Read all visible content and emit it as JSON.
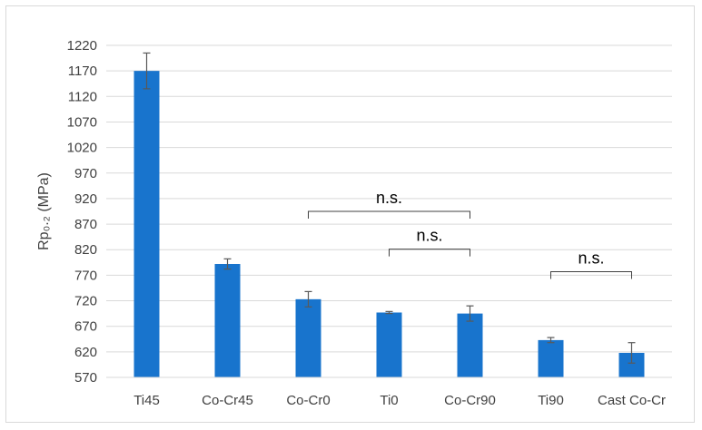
{
  "chart_data": {
    "type": "bar",
    "ylabel": "Rp₀.₂ (MPa)",
    "ylim": [
      570,
      1220
    ],
    "yticks": [
      570,
      620,
      670,
      720,
      770,
      820,
      870,
      920,
      970,
      1020,
      1070,
      1120,
      1170,
      1220
    ],
    "grid": true,
    "categories": [
      "Ti45",
      "Co-Cr45",
      "Co-Cr0",
      "Ti0",
      "Co-Cr90",
      "Ti90",
      "Cast Co-Cr"
    ],
    "values": [
      1170,
      792,
      723,
      697,
      695,
      643,
      618
    ],
    "errors": [
      35,
      10,
      15,
      2,
      15,
      5,
      20
    ],
    "bar_color": "#1874cd",
    "annotations": [
      {
        "text": "n.s.",
        "from": "Co-Cr0",
        "to": "Co-Cr90",
        "level": 895
      },
      {
        "text": "n.s.",
        "from": "Ti0",
        "to": "Co-Cr90",
        "level": 821
      },
      {
        "text": "n.s.",
        "from": "Ti90",
        "to": "Cast Co-Cr",
        "level": 777
      }
    ]
  }
}
